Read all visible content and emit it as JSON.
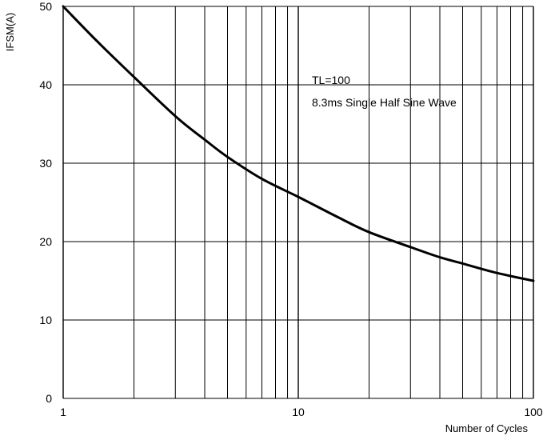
{
  "chart_data": {
    "type": "line",
    "title": "",
    "xlabel": "Number of Cycles",
    "ylabel": "IFSM(A)",
    "x_scale": "log",
    "xlim": [
      1,
      100
    ],
    "ylim": [
      0,
      50
    ],
    "grid": true,
    "x_major_ticks": [
      1,
      10,
      100
    ],
    "x_tick_labels": [
      "1",
      "10",
      "100"
    ],
    "x_minor_ticks": [
      2,
      3,
      4,
      5,
      6,
      7,
      8,
      9,
      20,
      30,
      40,
      50,
      60,
      70,
      80,
      90
    ],
    "y_ticks": [
      0,
      10,
      20,
      30,
      40,
      50
    ],
    "y_tick_labels": [
      "0",
      "10",
      "20",
      "30",
      "40",
      "50"
    ],
    "annotations": [
      "TL=100",
      "8.3ms Single Half Sine Wave"
    ],
    "series": [
      {
        "x": [
          1,
          1.4,
          2,
          3,
          4,
          5,
          7,
          10,
          15,
          20,
          30,
          40,
          50,
          70,
          100
        ],
        "y": [
          50,
          45.5,
          41,
          36,
          33,
          30.8,
          28,
          25.7,
          23,
          21.2,
          19.3,
          18,
          17.2,
          16,
          15
        ],
        "color": "#000000"
      }
    ]
  }
}
